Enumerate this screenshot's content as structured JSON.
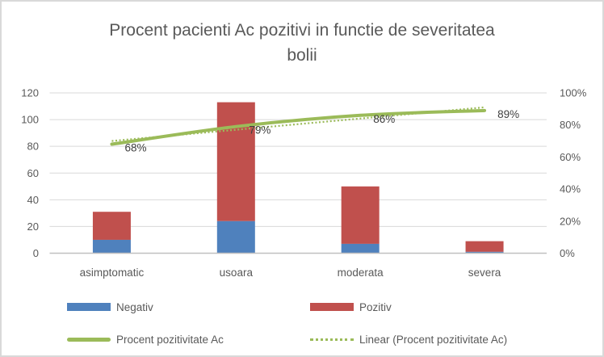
{
  "title": "Procent pacienti Ac pozitivi in functie de severitatea bolii",
  "colors": {
    "negativ_blue": "#4F81BD",
    "pozitiv_red": "#C0504D",
    "line_green": "#9BBB59",
    "gridline": "#D9D9D9",
    "axis_line": "#C0C0C0",
    "axis_text": "#595959",
    "data_label_text": "#404040",
    "figure_border": "#D9D9D9",
    "background": "#FFFFFF"
  },
  "chart_data": {
    "type": "bar",
    "subtype": "stacked-bars-with-percentage-line",
    "title": "Procent pacienti Ac pozitivi in functie de severitatea bolii",
    "categories": [
      "asimptomatic",
      "usoara",
      "moderata",
      "severa"
    ],
    "bar_series": [
      {
        "name": "Negativ",
        "color": "#4F81BD",
        "values": [
          10,
          24,
          7,
          1
        ]
      },
      {
        "name": "Pozitiv",
        "color": "#C0504D",
        "values": [
          21,
          89,
          43,
          8
        ]
      }
    ],
    "bar_totals": [
      31,
      113,
      50,
      9
    ],
    "line_series": {
      "name": "Procent pozitivitate Ac",
      "color": "#9BBB59",
      "axis": "right",
      "values_pct": [
        68,
        79,
        86,
        89
      ],
      "data_labels": [
        "68%",
        "79%",
        "86%",
        "89%"
      ]
    },
    "trendline": {
      "name": "Linear (Procent pozitivitate Ac)",
      "color": "#9BBB59",
      "style": "dotted",
      "values_pct": [
        70,
        77,
        84,
        91
      ]
    },
    "left_axis": {
      "min": 0,
      "max": 120,
      "ticks": [
        "0",
        "20",
        "40",
        "60",
        "80",
        "100",
        "120"
      ]
    },
    "right_axis": {
      "min": 0,
      "max": 100,
      "ticks": [
        "0%",
        "20%",
        "40%",
        "60%",
        "80%",
        "100%"
      ]
    },
    "grid": true,
    "legend_position": "bottom"
  },
  "legend": {
    "items": [
      {
        "label": "Negativ",
        "swatch": "rect",
        "color": "#4F81BD"
      },
      {
        "label": "Pozitiv",
        "swatch": "rect",
        "color": "#C0504D"
      },
      {
        "label": "Procent pozitivitate Ac",
        "swatch": "line",
        "color": "#9BBB59"
      },
      {
        "label": "Linear (Procent pozitivitate Ac)",
        "swatch": "dotted-line",
        "color": "#9BBB59"
      }
    ]
  }
}
